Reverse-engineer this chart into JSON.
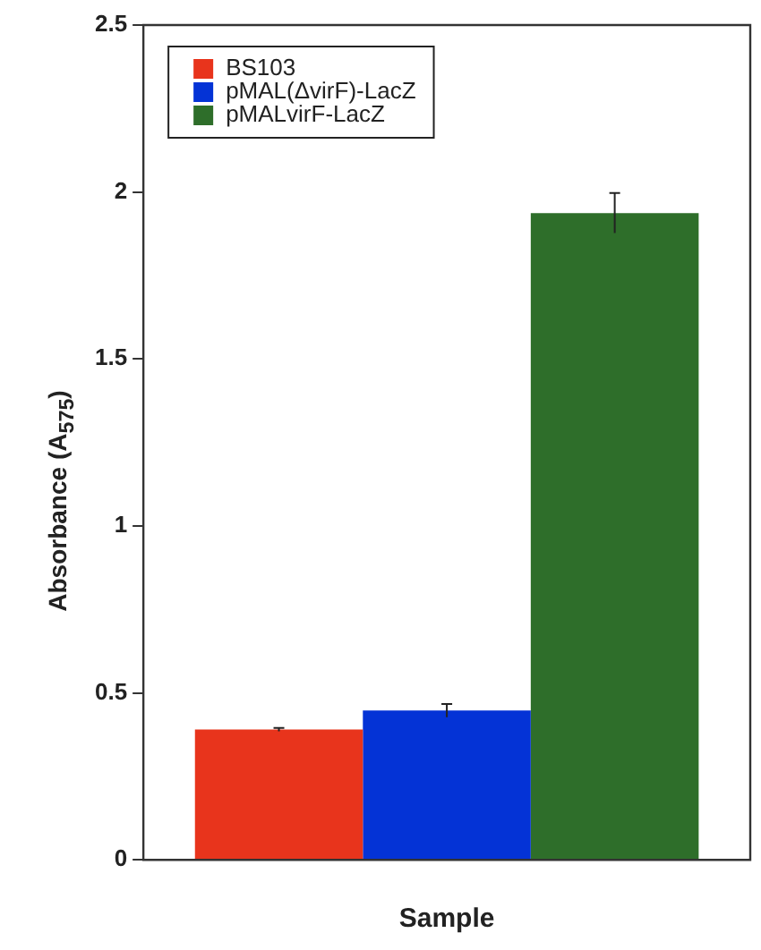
{
  "chart_data": {
    "type": "bar",
    "xlabel": "Sample",
    "ylabel": "Absorbance (A$_{575}$)",
    "categories": [
      null
    ],
    "series": [
      {
        "name": "BS103",
        "color": "#e8341c",
        "values": [
          0.39
        ],
        "errors": [
          0.005
        ]
      },
      {
        "name": "pMAL(ΔvirF)-LacZ",
        "color": "#0433d6",
        "values": [
          0.447
        ],
        "errors": [
          0.02
        ]
      },
      {
        "name": "pMALvirF-LacZ",
        "color": "#2e6e2a",
        "values": [
          1.937
        ],
        "errors": [
          0.06
        ]
      }
    ],
    "ylim": [
      0,
      2.5
    ],
    "yticks": [
      0,
      0.5,
      1,
      1.5,
      2,
      2.5
    ],
    "legend": "top left"
  }
}
